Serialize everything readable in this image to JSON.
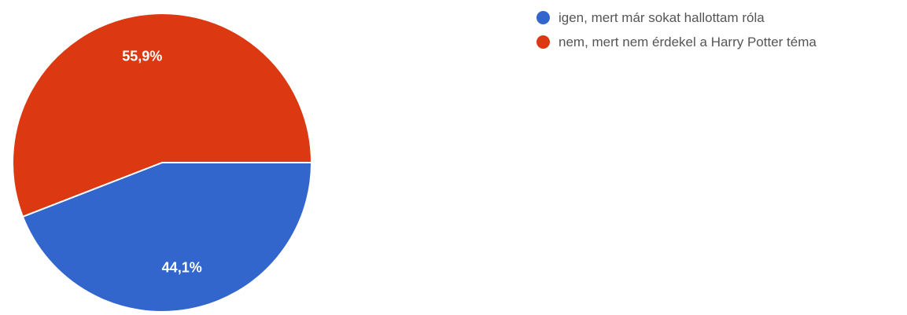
{
  "chart_data": {
    "type": "pie",
    "title": "",
    "slices": [
      {
        "label": "igen, mert már sokat hallottam róla",
        "value": 44.1,
        "display": "44,1%",
        "color": "#3366cc"
      },
      {
        "label": "nem, mert nem érdekel a Harry Potter téma",
        "value": 55.9,
        "display": "55,9%",
        "color": "#dc3912"
      }
    ],
    "start_angle_deg": 90,
    "direction": "clockwise",
    "legend_position": "right"
  }
}
